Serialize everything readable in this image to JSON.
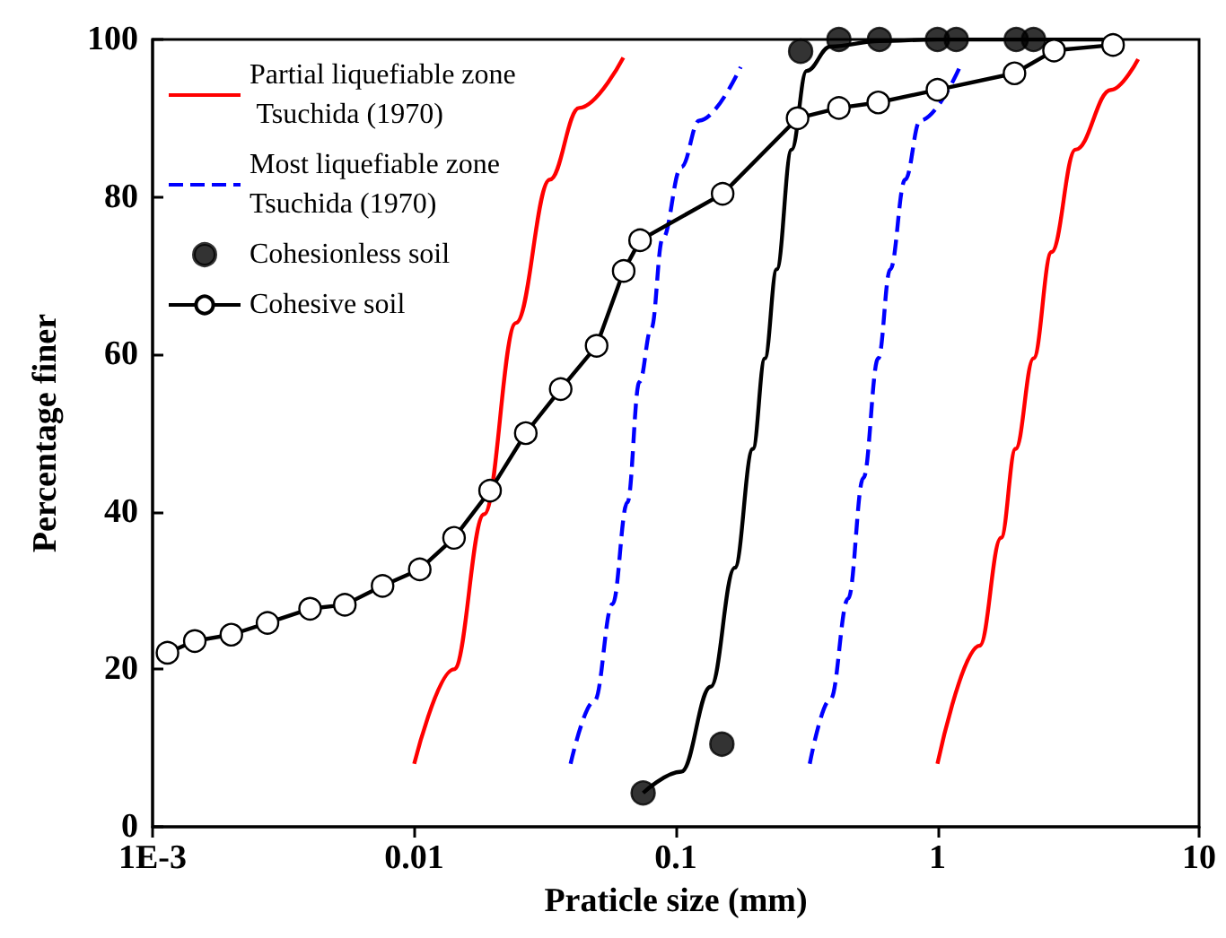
{
  "chart_data": {
    "type": "line",
    "xlabel": "Praticle size (mm)",
    "ylabel": "Percentage finer",
    "log": "x",
    "xlim": [
      0.001,
      10
    ],
    "xticks": [
      {
        "value": 0.001,
        "label": "1E-3"
      },
      0.01,
      0.1,
      1,
      10
    ],
    "ylim": [
      0,
      100
    ],
    "yticks": [
      0,
      20,
      40,
      60,
      80,
      100
    ],
    "grid": false,
    "legend": "top left",
    "series": [
      {
        "name": "Partial liquefiable zone Tsuchida (1970)",
        "color": "#ff0000",
        "marker": "none",
        "line_style": "solid",
        "x": [
          0.01,
          0.0142,
          0.0185,
          0.0245,
          0.033,
          0.0427,
          0.063,
          null,
          1.0,
          1.45,
          1.75,
          1.99,
          2.33,
          2.73,
          3.37,
          4.61,
          5.85
        ],
        "values": [
          8,
          20,
          39.7,
          64,
          82.2,
          91.3,
          97.7,
          null,
          8,
          23,
          36.7,
          48,
          59.5,
          73,
          86,
          93.6,
          97.5
        ]
      },
      {
        "name": "Most liquefiable zone Tsuchida (1970)",
        "color": "#0000ff",
        "marker": "none",
        "line_style": "dashed",
        "x": [
          0.0396,
          0.0489,
          0.0573,
          0.0653,
          0.0726,
          0.0806,
          0.089,
          0.105,
          0.123,
          0.177,
          null,
          0.325,
          0.39,
          0.456,
          0.521,
          0.594,
          0.66,
          0.753,
          0.859,
          1.21
        ],
        "values": [
          8,
          16,
          28.3,
          41.2,
          56.5,
          63.3,
          74.7,
          83.8,
          89.7,
          96.5,
          null,
          8,
          16.2,
          29,
          44.3,
          59.5,
          70.8,
          82.2,
          89.7,
          96.3
        ]
      },
      {
        "name": "Cohesionless soil",
        "type": "scatter",
        "color": "#000000",
        "marker": "circle",
        "x": [
          0.075,
          0.15,
          0.3,
          0.42,
          0.6,
          1.0,
          1.18,
          2.0,
          2.33
        ],
        "values": [
          4.3,
          10.5,
          98.5,
          100,
          100,
          100,
          100,
          100,
          100
        ]
      },
      {
        "color": "#000000",
        "marker": "none",
        "line_style": "solid",
        "x": [
          0.075,
          0.105,
          0.136,
          0.168,
          0.197,
          0.219,
          0.243,
          0.277,
          0.316,
          0.39,
          0.6,
          1.0,
          2.0,
          4.5
        ],
        "values": [
          4.3,
          7,
          17.8,
          32.9,
          48,
          59.5,
          70.8,
          86,
          96,
          99.1,
          99.8,
          100,
          100,
          100
        ]
      },
      {
        "name": "Cohesive soil",
        "color": "#000000",
        "marker": "circle",
        "line_style": "solid",
        "x": [
          0.00114,
          0.00145,
          0.002,
          0.00275,
          0.004,
          0.00543,
          0.00757,
          0.0105,
          0.0142,
          0.0195,
          0.0267,
          0.0363,
          0.0498,
          0.0632,
          0.073,
          0.151,
          0.292,
          0.42,
          0.594,
          1.0,
          1.97,
          2.79,
          4.69
        ],
        "values": [
          22.1,
          23.6,
          24.4,
          25.9,
          27.7,
          28.2,
          30.6,
          32.7,
          36.7,
          42.7,
          50,
          55.6,
          61.1,
          70.6,
          74.5,
          80.4,
          90,
          91.3,
          92,
          93.6,
          95.7,
          98.6,
          99.3
        ]
      }
    ]
  }
}
